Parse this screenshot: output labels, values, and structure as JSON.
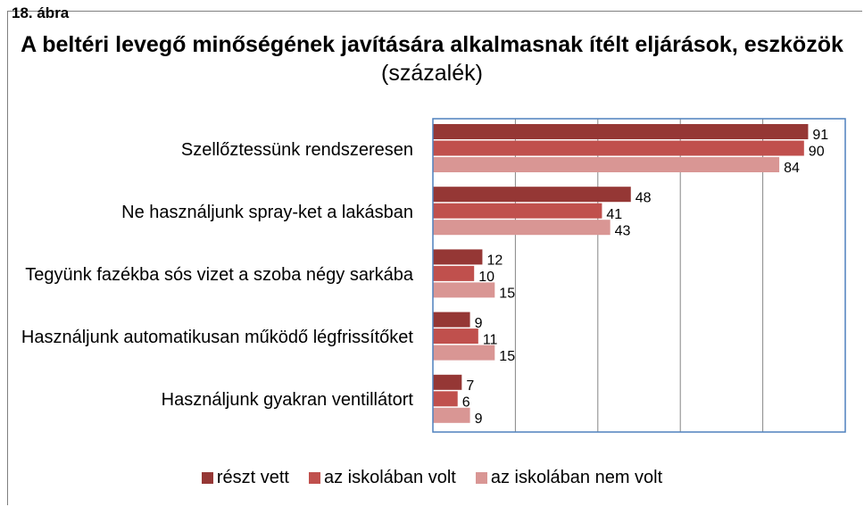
{
  "chart_data": {
    "type": "bar",
    "orientation": "horizontal",
    "caption": "18. ábra",
    "title": "A beltéri levegő minőségének javítására alkalmasnak ítélt eljárások, eszközök",
    "title_unit": "(százalék)",
    "categories": [
      "Szellőztessünk rendszeresen",
      "Ne használjunk spray-ket a lakásban",
      "Tegyünk fazékba sós vizet a szoba négy sarkába",
      "Használjunk automatikusan működő légfrissítőket",
      "Használjunk gyakran ventillátort"
    ],
    "series": [
      {
        "name": "részt vett",
        "color": "#953735",
        "values": [
          91,
          48,
          12,
          9,
          7
        ]
      },
      {
        "name": "az iskolában volt",
        "color": "#c0504d",
        "values": [
          90,
          41,
          10,
          11,
          6
        ]
      },
      {
        "name": "az iskolában nem volt",
        "color": "#d99694",
        "values": [
          84,
          43,
          15,
          15,
          9
        ]
      }
    ],
    "xlim": [
      0,
      100
    ],
    "xticks": [
      0,
      20,
      40,
      60,
      80,
      100
    ],
    "grid": true,
    "legend": "bottom"
  }
}
